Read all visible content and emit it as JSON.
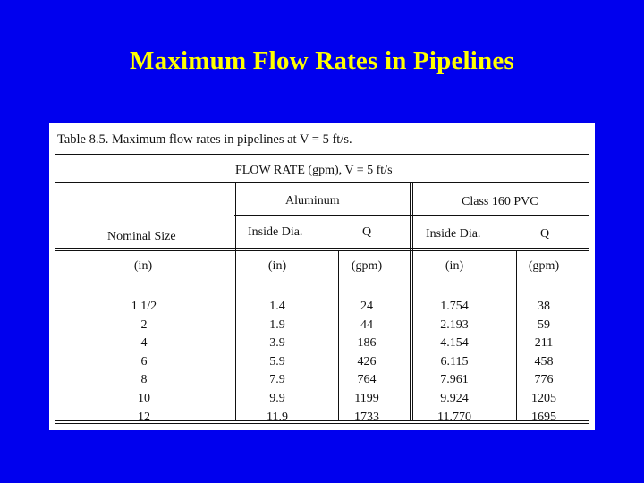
{
  "slide": {
    "title": "Maximum Flow Rates in Pipelines"
  },
  "table": {
    "caption": "Table 8.5.  Maximum flow rates in pipelines at V = 5 ft/s.",
    "flow_header": "FLOW RATE (gpm), V = 5 ft/s",
    "group_aluminum": "Aluminum",
    "group_pvc": "Class 160 PVC",
    "col_nominal": "Nominal Size",
    "col_al_dia": "Inside Dia.",
    "col_al_q": "Q",
    "col_pvc_dia": "Inside Dia.",
    "col_pvc_q": "Q",
    "units": {
      "nominal": "(in)",
      "al_dia": "(in)",
      "al_q": "(gpm)",
      "pvc_dia": "(in)",
      "pvc_q": "(gpm)"
    },
    "rows": [
      {
        "nominal": "1 1/2",
        "al_dia": "1.4",
        "al_q": "24",
        "pvc_dia": "1.754",
        "pvc_q": "38"
      },
      {
        "nominal": "2",
        "al_dia": "1.9",
        "al_q": "44",
        "pvc_dia": "2.193",
        "pvc_q": "59"
      },
      {
        "nominal": "4",
        "al_dia": "3.9",
        "al_q": "186",
        "pvc_dia": "4.154",
        "pvc_q": "211"
      },
      {
        "nominal": "6",
        "al_dia": "5.9",
        "al_q": "426",
        "pvc_dia": "6.115",
        "pvc_q": "458"
      },
      {
        "nominal": "8",
        "al_dia": "7.9",
        "al_q": "764",
        "pvc_dia": "7.961",
        "pvc_q": "776"
      },
      {
        "nominal": "10",
        "al_dia": "9.9",
        "al_q": "1199",
        "pvc_dia": "9.924",
        "pvc_q": "1205"
      },
      {
        "nominal": "12",
        "al_dia": "11.9",
        "al_q": "1733",
        "pvc_dia": "11.770",
        "pvc_q": "1695"
      }
    ]
  },
  "colors": {
    "background": "#0000ee",
    "title": "#ffff00",
    "table_bg": "#ffffff"
  }
}
